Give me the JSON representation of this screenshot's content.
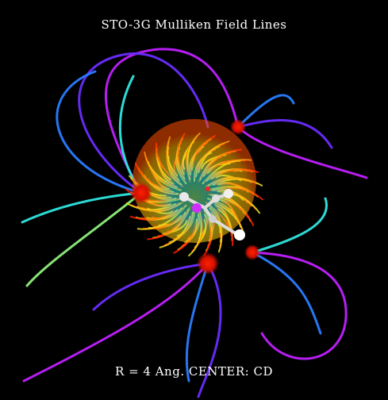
{
  "title": "STO-3G Mulliken Field Lines",
  "footer": "R = 4 Ang. CENTER:  CD",
  "colors": {
    "background": "#000000",
    "text": "#ffffff",
    "gradient": [
      "#ff1a00",
      "#ff7a00",
      "#ffd000",
      "#f2e21e",
      "#8df07a",
      "#2ee6e0",
      "#2a7cff",
      "#6a2cff",
      "#c020ff"
    ]
  }
}
